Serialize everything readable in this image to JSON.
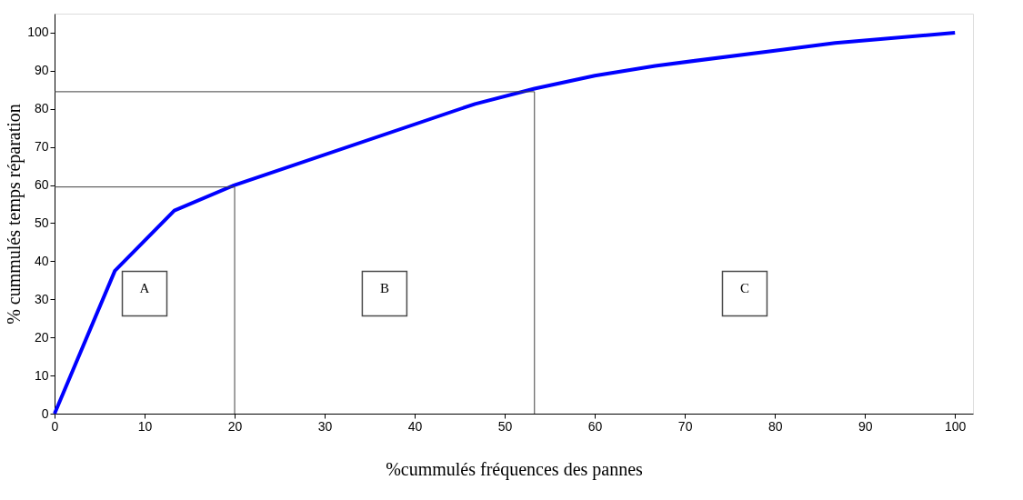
{
  "chart_data": {
    "type": "line",
    "xlabel": "%cummulés fréquences des pannes",
    "ylabel": "% cummulés temps réparation",
    "series": [
      {
        "x": [
          0,
          6.7,
          13.3,
          20,
          46.7,
          53.3,
          60,
          66.7,
          80,
          86.7,
          100
        ],
        "values": [
          0,
          37.5,
          53.3,
          60,
          81.3,
          85.3,
          88.7,
          91.3,
          95.3,
          97.3,
          100
        ],
        "color": "#0000ff"
      },
      {
        "x": [
          0,
          20,
          20
        ],
        "values": [
          59.5,
          59.5,
          0
        ],
        "color": "#404040"
      },
      {
        "x": [
          0,
          53.3,
          53.3
        ],
        "values": [
          84.5,
          84.5,
          0
        ],
        "color": "#404040"
      }
    ],
    "annotations": [
      "A",
      "B",
      "C"
    ],
    "xlim": [
      0,
      102
    ],
    "ylim": [
      0,
      105
    ],
    "xticks": [
      0,
      10,
      20,
      30,
      40,
      50,
      60,
      70,
      80,
      90,
      100
    ],
    "yticks": [
      0,
      10,
      20,
      30,
      40,
      50,
      60,
      70,
      80,
      90,
      100
    ],
    "grid": false,
    "marker": "none",
    "line_style": "solid"
  }
}
